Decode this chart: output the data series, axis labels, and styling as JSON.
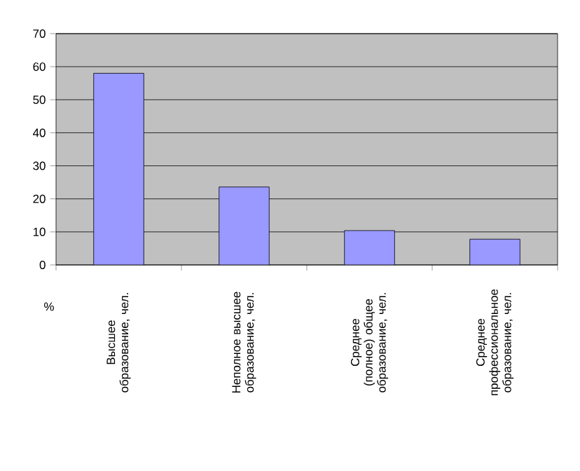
{
  "chart_data": {
    "type": "bar",
    "ylabel": "%",
    "categories": [
      "Высшее образование, чел.",
      "Неполное высшее образование, чел.",
      "Среднее (полное) общее образование, чел.",
      "Среднее профессиональное образование, чел."
    ],
    "values": [
      58,
      23.6,
      10.4,
      7.8
    ],
    "color": "#9999ff",
    "ylim": [
      0,
      70
    ],
    "yticks": [
      0,
      10,
      20,
      30,
      40,
      50,
      60,
      70
    ],
    "grid": "y"
  }
}
